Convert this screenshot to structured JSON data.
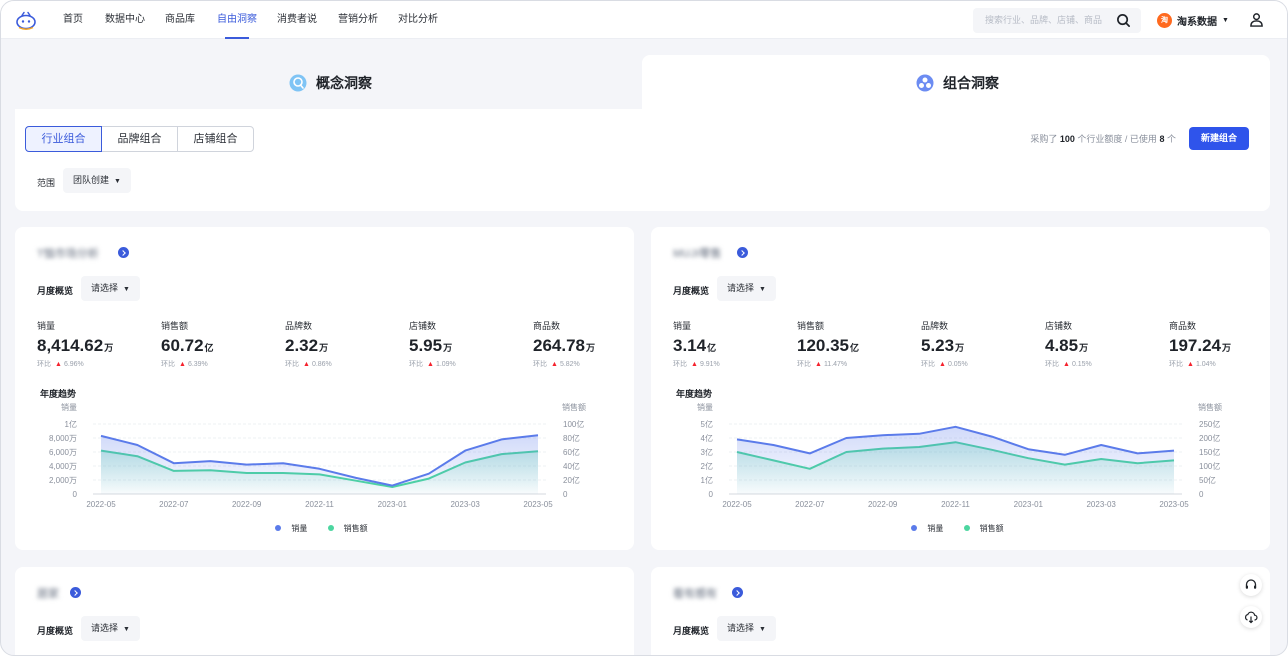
{
  "nav": {
    "items": [
      "首页",
      "数据中心",
      "商品库",
      "自由洞察",
      "消费者说",
      "营销分析",
      "对比分析"
    ],
    "active_index": 3,
    "search_placeholder": "搜索行业、品牌、店铺、商品",
    "brand_badge": "淘",
    "brand_label": "淘系数据"
  },
  "tabs": [
    {
      "label": "概念洞察",
      "active": false
    },
    {
      "label": "组合洞察",
      "active": true
    }
  ],
  "filter": {
    "segments": [
      "行业组合",
      "品牌组合",
      "店铺组合"
    ],
    "quota_pre": "采购了",
    "quota_total": "100",
    "quota_mid": "个行业额度 / 已使用",
    "quota_used": "8",
    "quota_post": "个",
    "new_button": "新建组合",
    "scope_label": "范围",
    "scope_value": "团队创建"
  },
  "cards": [
    {
      "title": "T恤市场分析",
      "month_label": "月度概览",
      "select_placeholder": "请选择",
      "metrics": [
        {
          "label": "销量",
          "value": "8,414.62",
          "unit": "万",
          "change_label": "环比",
          "change": "6.96%"
        },
        {
          "label": "销售额",
          "value": "60.72",
          "unit": "亿",
          "change_label": "环比",
          "change": "6.39%"
        },
        {
          "label": "品牌数",
          "value": "2.32",
          "unit": "万",
          "change_label": "环比",
          "change": "0.86%"
        },
        {
          "label": "店铺数",
          "value": "5.95",
          "unit": "万",
          "change_label": "环比",
          "change": "1.09%"
        },
        {
          "label": "商品数",
          "value": "264.78",
          "unit": "万",
          "change_label": "环比",
          "change": "5.82%"
        }
      ],
      "trend_label": "年度趋势",
      "chart_data": {
        "type": "area",
        "x": [
          "2022-05",
          "2022-06",
          "2022-07",
          "2022-08",
          "2022-09",
          "2022-10",
          "2022-11",
          "2022-12",
          "2023-01",
          "2023-02",
          "2023-03",
          "2023-04",
          "2023-05"
        ],
        "x_ticks": [
          "2022-05",
          "2022-07",
          "2022-09",
          "2022-11",
          "2023-01",
          "2023-03",
          "2023-05"
        ],
        "left_axis": {
          "label": "销量",
          "ticks": [
            "0",
            "2,000万",
            "4,000万",
            "6,000万",
            "8,000万",
            "1亿"
          ],
          "max": 10000
        },
        "right_axis": {
          "label": "销售额",
          "ticks": [
            "0",
            "20亿",
            "40亿",
            "60亿",
            "80亿",
            "100亿"
          ],
          "max": 100
        },
        "series": [
          {
            "name": "销量",
            "axis": "left",
            "color": "#5b7bea",
            "values": [
              8300,
              7000,
              4400,
              4700,
              4200,
              4400,
              3600,
              2300,
              1200,
              2900,
              6200,
              7800,
              8400
            ]
          },
          {
            "name": "销售额",
            "axis": "right",
            "color": "#4cd6a0",
            "values": [
              62,
              54,
              33,
              34,
              30,
              30,
              28,
              19,
              10,
              22,
              45,
              57,
              61
            ]
          }
        ]
      }
    },
    {
      "title": "MUJI零售",
      "month_label": "月度概览",
      "select_placeholder": "请选择",
      "metrics": [
        {
          "label": "销量",
          "value": "3.14",
          "unit": "亿",
          "change_label": "环比",
          "change": "9.91%"
        },
        {
          "label": "销售额",
          "value": "120.35",
          "unit": "亿",
          "change_label": "环比",
          "change": "11.47%"
        },
        {
          "label": "品牌数",
          "value": "5.23",
          "unit": "万",
          "change_label": "环比",
          "change": "0.05%"
        },
        {
          "label": "店铺数",
          "value": "4.85",
          "unit": "万",
          "change_label": "环比",
          "change": "0.15%"
        },
        {
          "label": "商品数",
          "value": "197.24",
          "unit": "万",
          "change_label": "环比",
          "change": "1.04%"
        }
      ],
      "trend_label": "年度趋势",
      "chart_data": {
        "type": "area",
        "x": [
          "2022-05",
          "2022-06",
          "2022-07",
          "2022-08",
          "2022-09",
          "2022-10",
          "2022-11",
          "2022-12",
          "2023-01",
          "2023-02",
          "2023-03",
          "2023-04",
          "2023-05"
        ],
        "x_ticks": [
          "2022-05",
          "2022-07",
          "2022-09",
          "2022-11",
          "2023-01",
          "2023-03",
          "2023-05"
        ],
        "left_axis": {
          "label": "销量",
          "ticks": [
            "0",
            "1亿",
            "2亿",
            "3亿",
            "4亿",
            "5亿"
          ],
          "max": 5
        },
        "right_axis": {
          "label": "销售额",
          "ticks": [
            "0",
            "50亿",
            "100亿",
            "150亿",
            "200亿",
            "250亿"
          ],
          "max": 250
        },
        "series": [
          {
            "name": "销量",
            "axis": "left",
            "color": "#5b7bea",
            "values": [
              3.9,
              3.5,
              2.9,
              4.0,
              4.2,
              4.3,
              4.8,
              4.1,
              3.2,
              2.8,
              3.5,
              2.9,
              3.1
            ]
          },
          {
            "name": "销售额",
            "axis": "right",
            "color": "#4cd6a0",
            "values": [
              150,
              120,
              90,
              150,
              162,
              168,
              185,
              158,
              128,
              105,
              125,
              110,
              120
            ]
          }
        ]
      }
    },
    {
      "title": "居家",
      "month_label": "月度概览",
      "select_placeholder": "请选择"
    },
    {
      "title": "看有感有",
      "month_label": "月度概览",
      "select_placeholder": "请选择"
    }
  ]
}
